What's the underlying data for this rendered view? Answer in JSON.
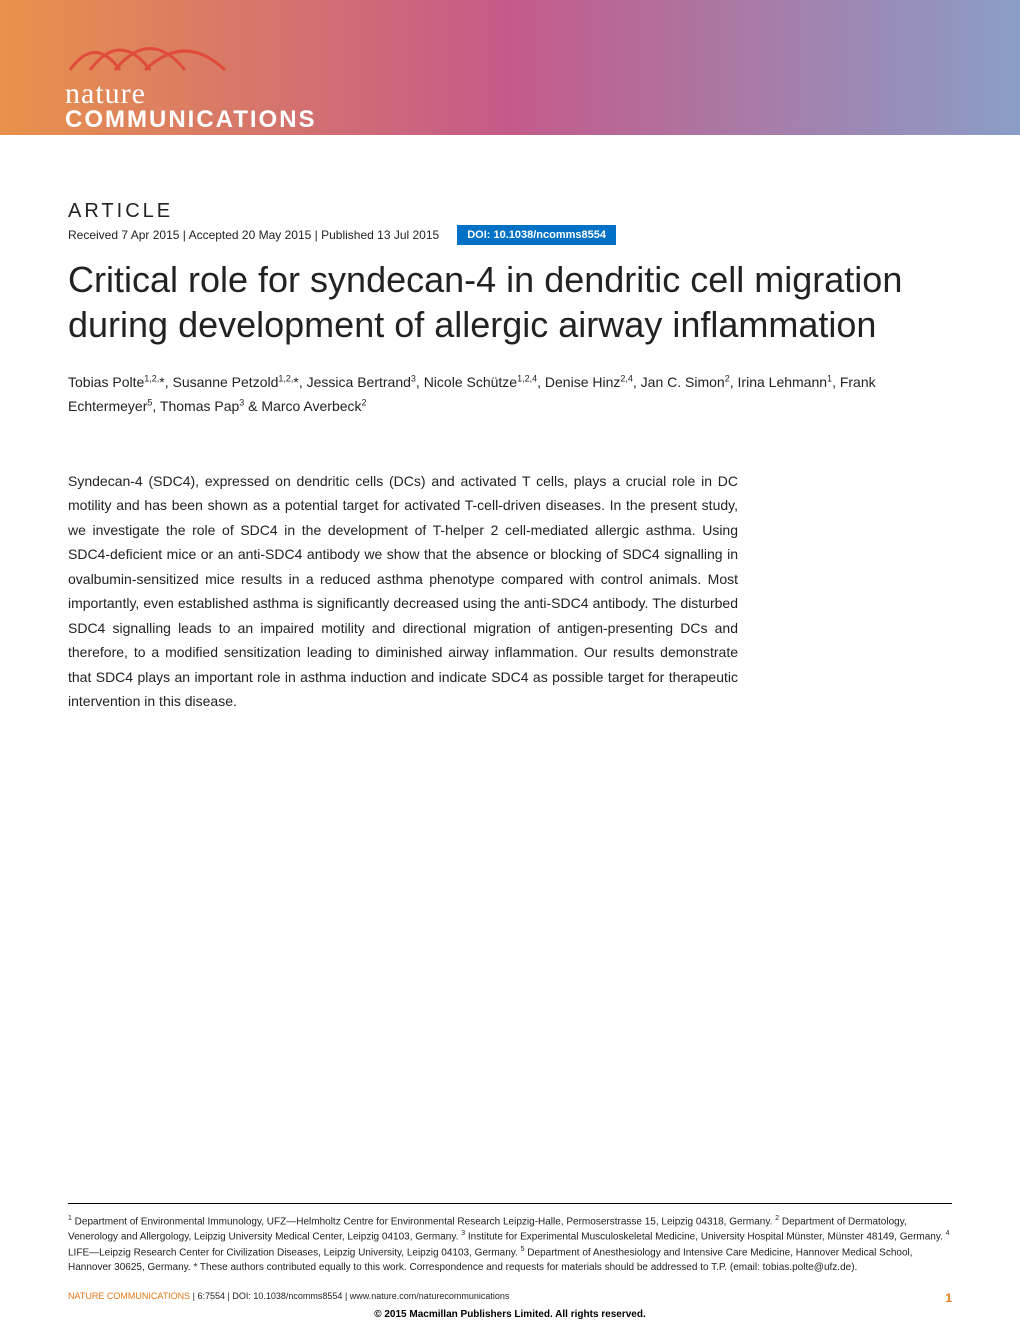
{
  "journal": {
    "name_line1": "nature",
    "name_line2": "COMMUNICATIONS"
  },
  "article_label": "ARTICLE",
  "dates": {
    "received": "Received 7 Apr 2015",
    "accepted": "Accepted 20 May 2015",
    "published": "Published 13 Jul 2015"
  },
  "doi": "DOI: 10.1038/ncomms8554",
  "title": "Critical role for syndecan-4 in dendritic cell migration during development of allergic airway inflammation",
  "authors_html": "Tobias Polte<sup>1,2,</sup>*, Susanne Petzold<sup>1,2,</sup>*, Jessica Bertrand<sup>3</sup>, Nicole Schütze<sup>1,2,4</sup>, Denise Hinz<sup>2,4</sup>, Jan C. Simon<sup>2</sup>, Irina Lehmann<sup>1</sup>, Frank Echtermeyer<sup>5</sup>, Thomas Pap<sup>3</sup> & Marco Averbeck<sup>2</sup>",
  "abstract": "Syndecan-4 (SDC4), expressed on dendritic cells (DCs) and activated T cells, plays a crucial role in DC motility and has been shown as a potential target for activated T-cell-driven diseases. In the present study, we investigate the role of SDC4 in the development of T-helper 2 cell-mediated allergic asthma. Using SDC4-deficient mice or an anti-SDC4 antibody we show that the absence or blocking of SDC4 signalling in ovalbumin-sensitized mice results in a reduced asthma phenotype compared with control animals. Most importantly, even established asthma is significantly decreased using the anti-SDC4 antibody. The disturbed SDC4 signalling leads to an impaired motility and directional migration of antigen-presenting DCs and therefore, to a modified sensitization leading to diminished airway inflammation. Our results demonstrate that SDC4 plays an important role in asthma induction and indicate SDC4 as possible target for therapeutic intervention in this disease.",
  "affiliations_html": "<sup>1</sup> Department of Environmental Immunology, UFZ—Helmholtz Centre for Environmental Research Leipzig-Halle, Permoserstrasse 15, Leipzig 04318, Germany. <sup>2</sup> Department of Dermatology, Venerology and Allergology, Leipzig University Medical Center, Leipzig 04103, Germany. <sup>3</sup> Institute for Experimental Musculoskeletal Medicine, University Hospital Münster, Münster 48149, Germany. <sup>4</sup> LIFE—Leipzig Research Center for Civilization Diseases, Leipzig University, Leipzig 04103, Germany. <sup>5</sup> Department of Anesthesiology and Intensive Care Medicine, Hannover Medical School, Hannover 30625, Germany. * These authors contributed equally to this work. Correspondence and requests for materials should be addressed to T.P. (email: tobias.polte@ufz.de).",
  "footer": {
    "citation_prefix": "NATURE COMMUNICATIONS",
    "citation_details": " | 6:7554 | DOI: 10.1038/ncomms8554 | www.nature.com/naturecommunications",
    "page_number": "1",
    "copyright": "© 2015 Macmillan Publishers Limited. All rights reserved."
  },
  "colors": {
    "doi_badge_bg": "#0072c6",
    "accent_orange": "#e67817",
    "text": "#222222",
    "gradient_left": "#e8924b",
    "gradient_mid": "#c45a8a",
    "gradient_right": "#8a9ec7"
  },
  "typography": {
    "title_fontsize": 36,
    "body_fontsize": 14,
    "affiliations_fontsize": 10,
    "footer_fontsize": 9
  }
}
